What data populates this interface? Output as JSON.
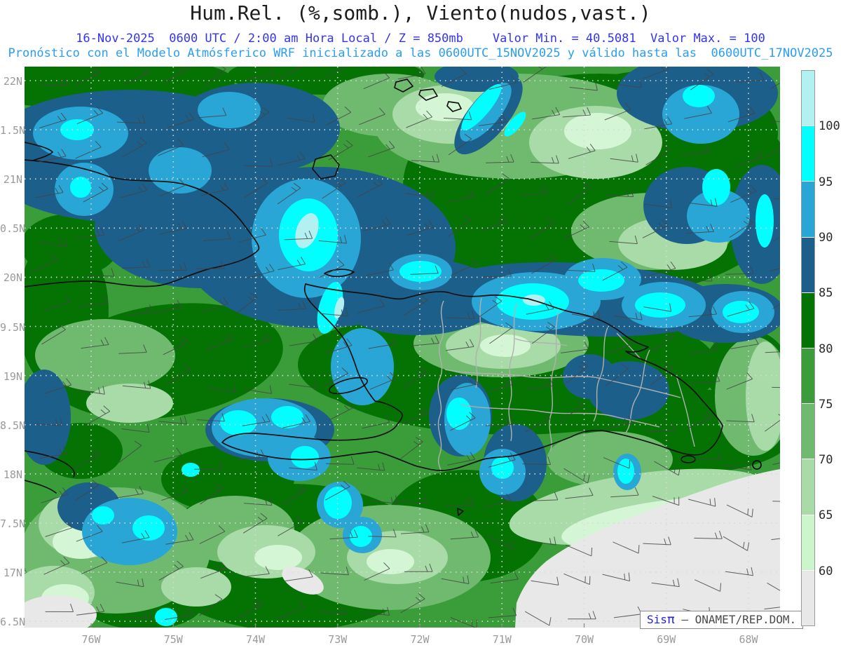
{
  "title": "Hum.Rel. (%,somb.), Viento(nudos,vast.)",
  "header": {
    "line1_left": "16-Nov-2025  0600 UTC / 2:00 am Hora Local / Z = 850mb",
    "line1_right": "Valor Min. = 40.5081  Valor Max. = 100",
    "line2": "Pronóstico con el Modelo Atmósferico WRF inicializado a las 0600UTC_15NOV2025 y válido hasta las  0600UTC_17NOV2025"
  },
  "axes": {
    "lat_labels": [
      "22N",
      "1.5N",
      "21N",
      "0.5N",
      "20N",
      "9.5N",
      "19N",
      "8.5N",
      "18N",
      "7.5N",
      "17N",
      "6.5N"
    ],
    "lon_labels": [
      "76W",
      "75W",
      "74W",
      "73W",
      "72W",
      "71W",
      "70W",
      "69W",
      "68W"
    ]
  },
  "legend": {
    "labels": [
      "100",
      "95",
      "90",
      "85",
      "80",
      "75",
      "70",
      "65",
      "60"
    ],
    "segments": [
      {
        "range": "100+",
        "color": "#b2f1f1"
      },
      {
        "range": "95-100",
        "color": "#00ffff"
      },
      {
        "range": "90-95",
        "color": "#29a6d6"
      },
      {
        "range": "85-90",
        "color": "#1c5f8a"
      },
      {
        "range": "80-85",
        "color": "#047304"
      },
      {
        "range": "75-80",
        "color": "#3a9d3a"
      },
      {
        "range": "70-75",
        "color": "#70ba70"
      },
      {
        "range": "65-70",
        "color": "#a9dba9"
      },
      {
        "range": "60-65",
        "color": "#ccf5cc"
      },
      {
        "range": "<60",
        "color": "#e8e8e8"
      }
    ]
  },
  "attribution": {
    "brand_prefix": "Sis",
    "brand_pi": "π",
    "suffix": " – ONAMET/REP.DOM."
  },
  "chart_data": {
    "type": "heatmap",
    "title": "Hum.Rel. (%,somb.), Viento(nudos,vast.)",
    "variable": "Relative humidity (%, shaded) and wind (knots, barbs)",
    "level": "850mb",
    "valid_time": "16-Nov-2025 0600 UTC / 2:00 am Hora Local",
    "model": "WRF, inicializado 0600UTC_15NOV2025, válido hasta 0600UTC_17NOV2025",
    "value_min": 40.5081,
    "value_max": 100,
    "color_levels": [
      60,
      65,
      70,
      75,
      80,
      85,
      90,
      95,
      100
    ],
    "colors_low_to_high": [
      "#e8e8e8",
      "#ccf5cc",
      "#a9dba9",
      "#70ba70",
      "#3a9d3a",
      "#047304",
      "#1c5f8a",
      "#29a6d6",
      "#00ffff",
      "#b2f1f1"
    ],
    "x_ticks": [
      "76W",
      "75W",
      "74W",
      "73W",
      "72W",
      "71W",
      "70W",
      "69W",
      "68W"
    ],
    "y_ticks": [
      "22N",
      "1.5N",
      "21N",
      "0.5N",
      "20N",
      "9.5N",
      "19N",
      "8.5N",
      "18N",
      "7.5N",
      "17N",
      "6.5N"
    ],
    "region": "Hispaniola / eastern Cuba / Caribbean",
    "legend_position": "right",
    "grid": "dotted",
    "notes": "High RH (85-100%) band north of Hispaniola and over eastern Cuba; dry area (<60%) southeast of the Dominican Republic"
  }
}
